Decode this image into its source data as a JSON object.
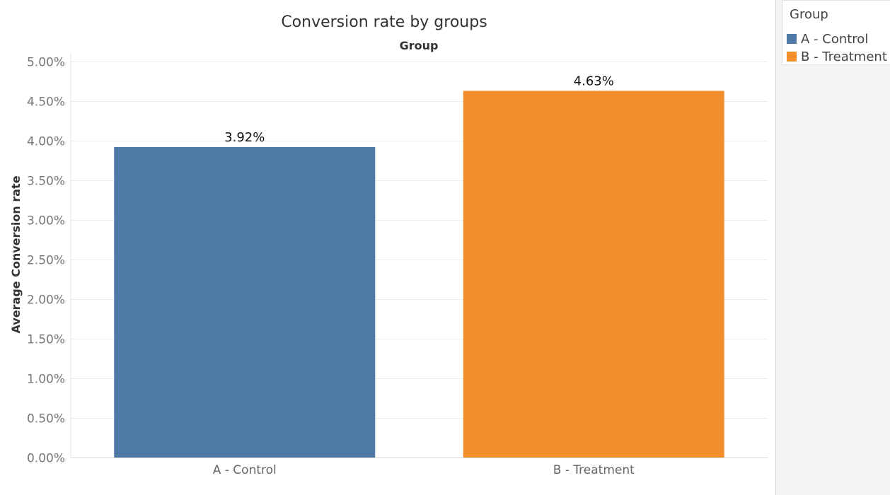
{
  "chart_data": {
    "type": "bar",
    "title": "Conversion rate by groups",
    "column_header": "Group",
    "ylabel": "Average Conversion rate",
    "xlabel": "",
    "categories": [
      "A - Control",
      "B - Treatment"
    ],
    "values": [
      3.92,
      4.63
    ],
    "value_labels": [
      "3.92%",
      "4.63%"
    ],
    "colors": [
      "#4e79a7",
      "#f28e2b"
    ],
    "ylim": [
      0,
      5
    ],
    "yticks": [
      0,
      0.5,
      1,
      1.5,
      2,
      2.5,
      3,
      3.5,
      4,
      4.5,
      5
    ],
    "ytick_labels": [
      "0.00%",
      "0.50%",
      "1.00%",
      "1.50%",
      "2.00%",
      "2.50%",
      "3.00%",
      "3.50%",
      "4.00%",
      "4.50%",
      "5.00%"
    ],
    "grid": true,
    "legend_position": "right"
  },
  "legend": {
    "title": "Group",
    "items": [
      {
        "label": "A - Control",
        "color": "#4e79a7"
      },
      {
        "label": "B - Treatment",
        "color": "#f28e2b"
      }
    ]
  }
}
